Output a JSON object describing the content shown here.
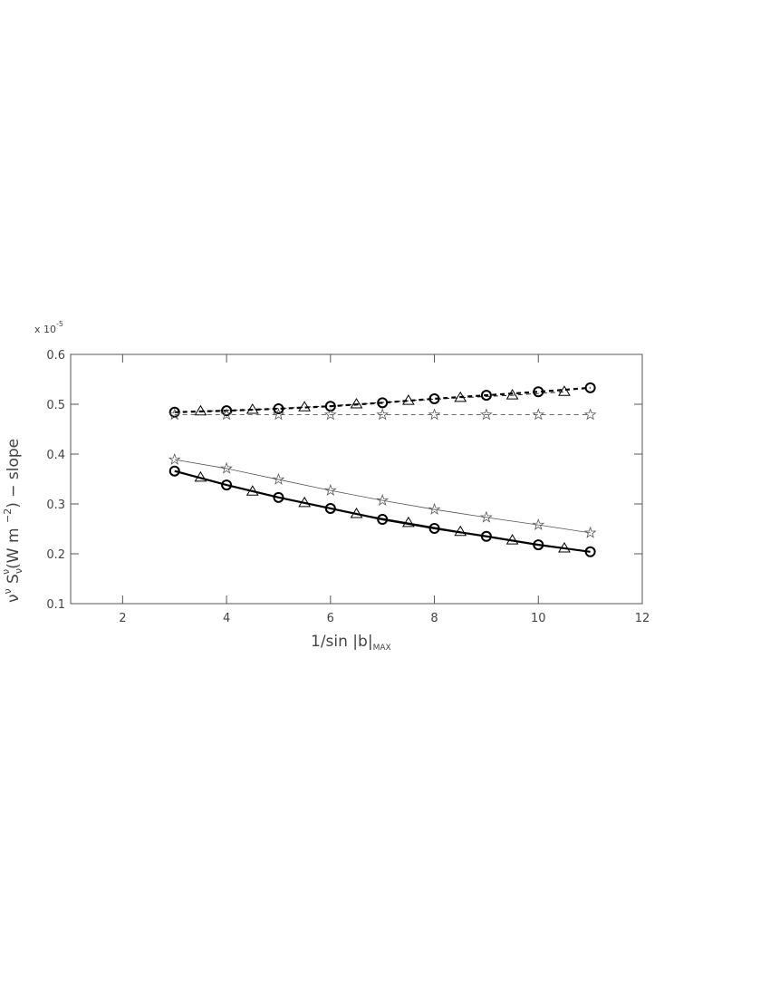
{
  "chart_data": {
    "type": "line",
    "y_multiplier": [
      "x 10",
      "-5"
    ],
    "ylabel": [
      "ν",
      "ν",
      " S",
      "ν",
      "ν",
      "(W m ",
      "−2",
      ") − slope"
    ],
    "xlabel": [
      "1/sin |b|",
      "MAX"
    ],
    "xlim": [
      1,
      12
    ],
    "ylim": [
      0.1,
      0.6
    ],
    "xticks": [
      2,
      4,
      6,
      8,
      10,
      12
    ],
    "yticks": [
      0.1,
      0.2,
      0.3,
      0.4,
      0.5,
      0.6
    ],
    "series": [
      {
        "color": "#000000",
        "marker": "circle",
        "linestyle": "solid",
        "linewidth": 2.2,
        "x": [
          3,
          4,
          5,
          6,
          7,
          8,
          9,
          10,
          11
        ],
        "values": [
          0.366,
          0.338,
          0.313,
          0.291,
          0.269,
          0.251,
          0.235,
          0.218,
          0.204
        ]
      },
      {
        "color": "#000000",
        "marker": "triangle",
        "linestyle": "solid",
        "linewidth": 0.8,
        "x": [
          3.5,
          4.5,
          5.5,
          6.5,
          7.5,
          8.5,
          9.5,
          10.5
        ],
        "values": [
          0.353,
          0.325,
          0.302,
          0.28,
          0.262,
          0.244,
          0.227,
          0.211
        ]
      },
      {
        "color": "#555555",
        "marker": "star",
        "linestyle": "solid",
        "linewidth": 0.8,
        "x": [
          3,
          4,
          5,
          6,
          7,
          8,
          9,
          10,
          11
        ],
        "values": [
          0.389,
          0.371,
          0.349,
          0.327,
          0.307,
          0.289,
          0.273,
          0.258,
          0.242
        ]
      },
      {
        "color": "#000000",
        "marker": "circle",
        "linestyle": "dashed",
        "linewidth": 2.2,
        "x": [
          3,
          4,
          5,
          6,
          7,
          8,
          9,
          10,
          11
        ],
        "values": [
          0.484,
          0.487,
          0.491,
          0.496,
          0.503,
          0.511,
          0.518,
          0.525,
          0.533
        ]
      },
      {
        "color": "#000000",
        "marker": "triangle",
        "linestyle": "dashed",
        "linewidth": 0.8,
        "x": [
          3.5,
          4.5,
          5.5,
          6.5,
          7.5,
          8.5,
          9.5,
          10.5
        ],
        "values": [
          0.486,
          0.489,
          0.494,
          0.5,
          0.507,
          0.513,
          0.518,
          0.525
        ]
      },
      {
        "color": "#555555",
        "marker": "star",
        "linestyle": "dashed",
        "linewidth": 0.8,
        "x": [
          3,
          4,
          5,
          6,
          7,
          8,
          9,
          10,
          11
        ],
        "values": [
          0.479,
          0.479,
          0.479,
          0.479,
          0.479,
          0.479,
          0.479,
          0.479,
          0.479
        ]
      }
    ]
  }
}
